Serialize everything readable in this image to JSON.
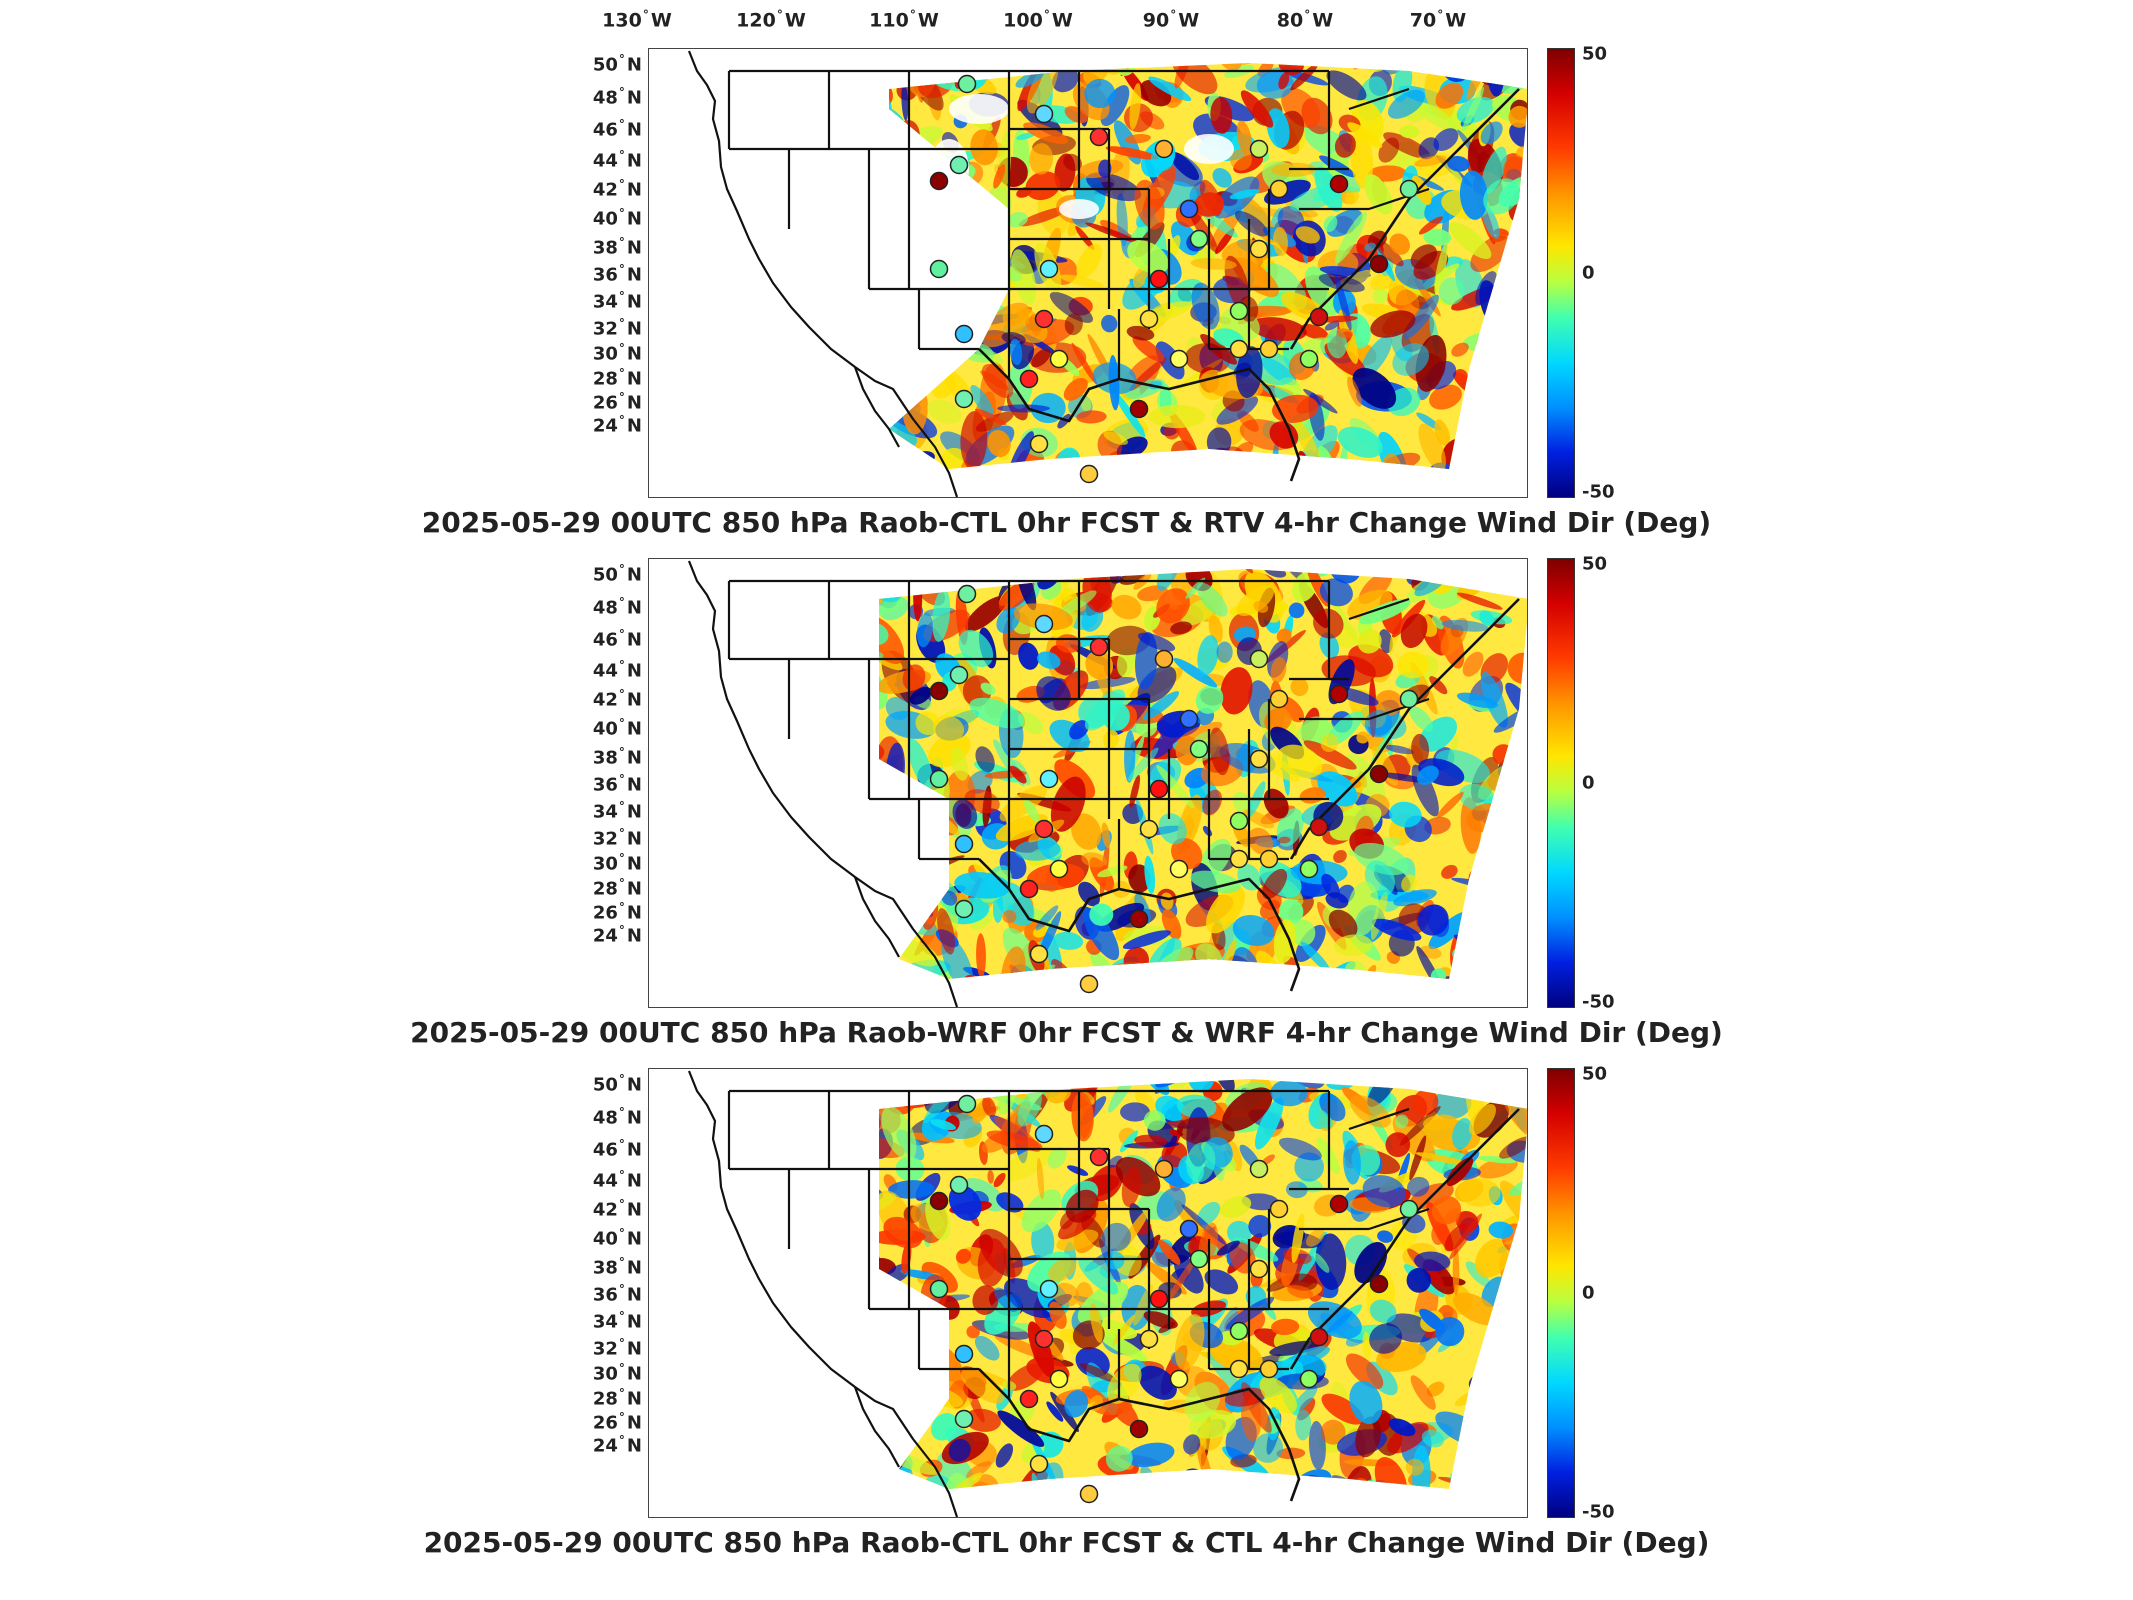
{
  "lon_labels": [
    {
      "deg": "130",
      "hemi": "W"
    },
    {
      "deg": "120",
      "hemi": "W"
    },
    {
      "deg": "110",
      "hemi": "W"
    },
    {
      "deg": "100",
      "hemi": "W"
    },
    {
      "deg": "90",
      "hemi": "W"
    },
    {
      "deg": "80",
      "hemi": "W"
    },
    {
      "deg": "70",
      "hemi": "W"
    }
  ],
  "lat_labels": [
    {
      "deg": "50",
      "hemi": "N"
    },
    {
      "deg": "48",
      "hemi": "N"
    },
    {
      "deg": "46",
      "hemi": "N"
    },
    {
      "deg": "44",
      "hemi": "N"
    },
    {
      "deg": "42",
      "hemi": "N"
    },
    {
      "deg": "40",
      "hemi": "N"
    },
    {
      "deg": "38",
      "hemi": "N"
    },
    {
      "deg": "36",
      "hemi": "N"
    },
    {
      "deg": "34",
      "hemi": "N"
    },
    {
      "deg": "32",
      "hemi": "N"
    },
    {
      "deg": "30",
      "hemi": "N"
    },
    {
      "deg": "28",
      "hemi": "N"
    },
    {
      "deg": "26",
      "hemi": "N"
    },
    {
      "deg": "24",
      "hemi": "N"
    }
  ],
  "colorbar": {
    "max": "50",
    "mid": "0",
    "min": "-50"
  },
  "colors": {
    "high": "#7f0000",
    "mid": "#40ffb0",
    "low": "#00007f"
  },
  "panels": [
    {
      "title": "2025-05-29 00UTC 850 hPa Raob-CTL 0hr FCST & RTV 4-hr Change Wind Dir (Deg)"
    },
    {
      "title": "2025-05-29 00UTC 850 hPa Raob-WRF 0hr FCST & WRF 4-hr Change Wind Dir (Deg)"
    },
    {
      "title": "2025-05-29 00UTC 850 hPa Raob-CTL 0hr FCST & CTL 4-hr Change Wind Dir (Deg)"
    }
  ]
}
